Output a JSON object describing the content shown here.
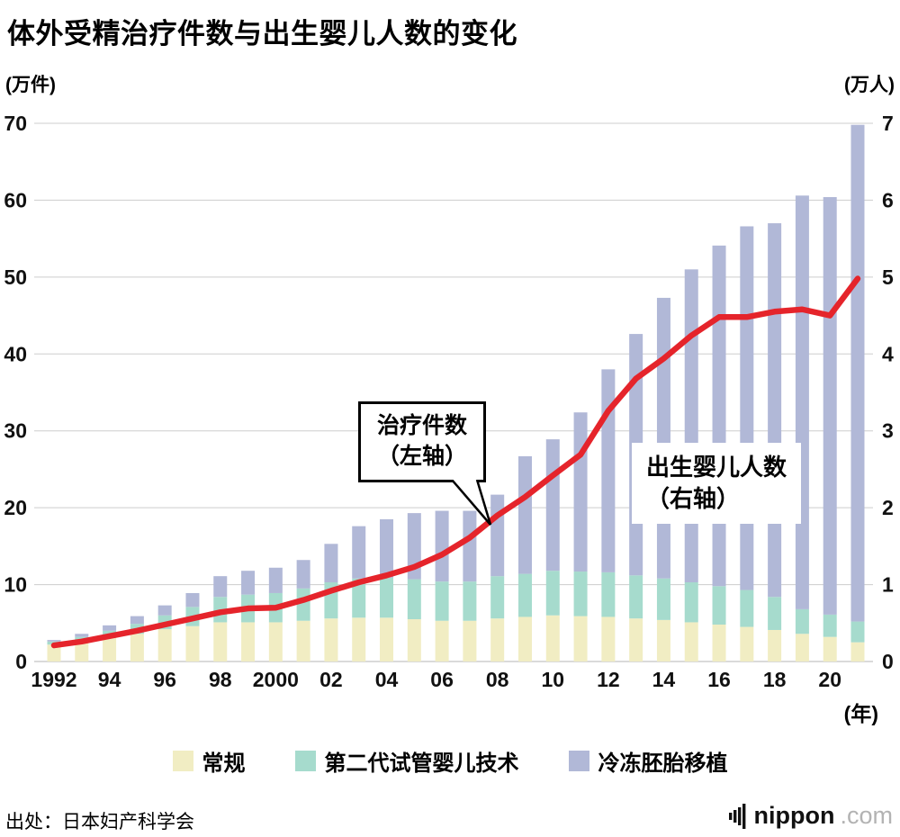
{
  "title": "体外受精治疗件数与出生婴儿人数的变化",
  "source": "出处：日本妇产科学会",
  "logo": {
    "name": "nippon",
    "tld": ".com"
  },
  "legend": {
    "items": [
      {
        "label": "常规",
        "color": "#f1edc3"
      },
      {
        "label": "第二代试管婴儿技术",
        "color": "#a6dbcd"
      },
      {
        "label": "冷冻胚胎移植",
        "color": "#b1b8d7"
      }
    ]
  },
  "chart_data": {
    "type": "bar+line",
    "title": "体外受精治疗件数与出生婴儿人数的变化",
    "x": [
      1992,
      1993,
      1994,
      1995,
      1996,
      1997,
      1998,
      1999,
      2000,
      2001,
      2002,
      2003,
      2004,
      2005,
      2006,
      2007,
      2008,
      2009,
      2010,
      2011,
      2012,
      2013,
      2014,
      2015,
      2016,
      2017,
      2018,
      2019,
      2020,
      2021
    ],
    "x_tick_labels": [
      "1992",
      "",
      "94",
      "",
      "96",
      "",
      "98",
      "",
      "2000",
      "",
      "02",
      "",
      "04",
      "",
      "06",
      "",
      "08",
      "",
      "10",
      "",
      "12",
      "",
      "14",
      "",
      "16",
      "",
      "18",
      "",
      "20",
      ""
    ],
    "x_axis_unit": "(年)",
    "left_axis": {
      "unit": "(万件)",
      "min": 0,
      "max": 70,
      "step": 10
    },
    "right_axis": {
      "unit": "(万人)",
      "min": 0,
      "max": 7,
      "step": 1
    },
    "grid": true,
    "bar_series": [
      {
        "name": "常规",
        "axis": "right",
        "color": "#f1edc3",
        "values": [
          0.22,
          0.26,
          0.31,
          0.36,
          0.42,
          0.46,
          0.51,
          0.51,
          0.51,
          0.53,
          0.56,
          0.57,
          0.57,
          0.55,
          0.53,
          0.53,
          0.56,
          0.58,
          0.6,
          0.59,
          0.58,
          0.56,
          0.54,
          0.51,
          0.48,
          0.45,
          0.41,
          0.36,
          0.32,
          0.25
        ]
      },
      {
        "name": "第二代试管婴儿技术",
        "axis": "right",
        "color": "#a6dbcd",
        "values": [
          0.04,
          0.06,
          0.09,
          0.13,
          0.18,
          0.25,
          0.33,
          0.36,
          0.38,
          0.42,
          0.47,
          0.51,
          0.52,
          0.52,
          0.51,
          0.51,
          0.55,
          0.56,
          0.58,
          0.58,
          0.58,
          0.56,
          0.54,
          0.52,
          0.5,
          0.48,
          0.43,
          0.32,
          0.29,
          0.27
        ]
      },
      {
        "name": "冷冻胚胎移植",
        "axis": "right",
        "color": "#b1b8d7",
        "values": [
          0.02,
          0.04,
          0.07,
          0.1,
          0.13,
          0.18,
          0.27,
          0.31,
          0.33,
          0.37,
          0.5,
          0.68,
          0.76,
          0.86,
          0.92,
          0.92,
          1.06,
          1.53,
          1.71,
          2.07,
          2.64,
          3.14,
          3.65,
          4.07,
          4.43,
          4.73,
          4.86,
          5.38,
          5.43,
          6.46
        ]
      }
    ],
    "line_series": {
      "name": "治疗件数",
      "axis": "left",
      "color": "#e5242b",
      "values": [
        2.1,
        2.6,
        3.3,
        4.0,
        4.8,
        5.6,
        6.4,
        6.9,
        7.0,
        8.0,
        9.2,
        10.3,
        11.2,
        12.3,
        13.9,
        16.1,
        19.0,
        21.4,
        24.2,
        26.9,
        32.6,
        36.8,
        39.4,
        42.4,
        44.8,
        44.8,
        45.5,
        45.8,
        45.0,
        49.8
      ]
    },
    "annotations": {
      "treatment": {
        "line1": "治疗件数",
        "line2": "（左轴）"
      },
      "births": {
        "line1": "出生婴儿人数",
        "line2": "（右轴）"
      }
    }
  }
}
